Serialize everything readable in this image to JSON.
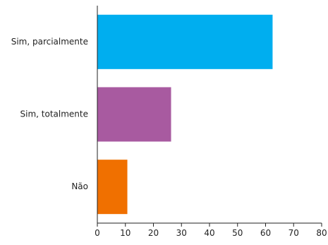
{
  "chart_data": {
    "type": "bar",
    "orientation": "horizontal",
    "categories": [
      "Sim, parcialmente",
      "Sim, totalmente",
      "Não"
    ],
    "values": [
      62.5,
      26.3,
      10.7
    ],
    "colors": [
      "#00aeef",
      "#a85aa0",
      "#f07000"
    ],
    "title": "",
    "xlabel": "",
    "ylabel": "",
    "xlim": [
      0,
      80
    ],
    "ticks": [
      0,
      10,
      20,
      30,
      40,
      50,
      60,
      70,
      80
    ],
    "tick_labels": [
      "0",
      "10",
      "20",
      "30",
      "40",
      "50",
      "60",
      "70",
      "80"
    ],
    "grid": false,
    "legend": "none"
  }
}
